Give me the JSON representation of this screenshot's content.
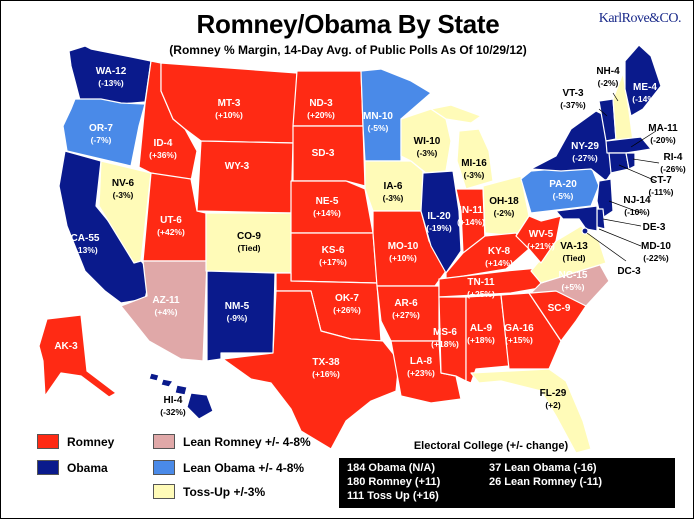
{
  "header": {
    "title": "Romney/Obama By State",
    "subtitle": "(Romney % Margin, 14-Day Avg. of Public Polls As Of 10/29/12)",
    "brand": "KarlRove&CO."
  },
  "colors": {
    "romney": "#ff2a14",
    "obama": "#0a1a8c",
    "lean_romney": "#e0a8a8",
    "lean_obama": "#4a8ae8",
    "tossup": "#fffbb8",
    "border": "#ffffff"
  },
  "states": [
    {
      "label": "WA-12",
      "value": "(-13%)",
      "category": "obama"
    },
    {
      "label": "OR-7",
      "value": "(-7%)",
      "category": "lean_obama"
    },
    {
      "label": "CA-55",
      "value": "(-13%)",
      "category": "obama"
    },
    {
      "label": "NV-6",
      "value": "(-3%)",
      "category": "tossup"
    },
    {
      "label": "ID-4",
      "value": "(+36%)",
      "category": "romney"
    },
    {
      "label": "MT-3",
      "value": "(+10%)",
      "category": "romney"
    },
    {
      "label": "WY-3",
      "value": "",
      "category": "romney"
    },
    {
      "label": "UT-6",
      "value": "(+42%)",
      "category": "romney"
    },
    {
      "label": "AZ-11",
      "value": "(+4%)",
      "category": "lean_romney"
    },
    {
      "label": "CO-9",
      "value": "(Tied)",
      "category": "tossup"
    },
    {
      "label": "NM-5",
      "value": "(-9%)",
      "category": "obama"
    },
    {
      "label": "ND-3",
      "value": "(+20%)",
      "category": "romney"
    },
    {
      "label": "SD-3",
      "value": "",
      "category": "romney"
    },
    {
      "label": "NE-5",
      "value": "(+14%)",
      "category": "romney"
    },
    {
      "label": "KS-6",
      "value": "(+17%)",
      "category": "romney"
    },
    {
      "label": "OK-7",
      "value": "(+26%)",
      "category": "romney"
    },
    {
      "label": "TX-38",
      "value": "(+16%)",
      "category": "romney"
    },
    {
      "label": "MN-10",
      "value": "(-5%)",
      "category": "lean_obama"
    },
    {
      "label": "IA-6",
      "value": "(-3%)",
      "category": "tossup"
    },
    {
      "label": "MO-10",
      "value": "(+10%)",
      "category": "romney"
    },
    {
      "label": "AR-6",
      "value": "(+27%)",
      "category": "romney"
    },
    {
      "label": "LA-8",
      "value": "(+23%)",
      "category": "romney"
    },
    {
      "label": "WI-10",
      "value": "(-3%)",
      "category": "tossup"
    },
    {
      "label": "IL-20",
      "value": "(-19%)",
      "category": "obama"
    },
    {
      "label": "MI-16",
      "value": "(-3%)",
      "category": "tossup"
    },
    {
      "label": "IN-11",
      "value": "(+14%)",
      "category": "romney"
    },
    {
      "label": "OH-18",
      "value": "(-2%)",
      "category": "tossup"
    },
    {
      "label": "KY-8",
      "value": "(+14%)",
      "category": "romney"
    },
    {
      "label": "TN-11",
      "value": "(+25%)",
      "category": "romney"
    },
    {
      "label": "MS-6",
      "value": "(+18%)",
      "category": "romney"
    },
    {
      "label": "AL-9",
      "value": "(+18%)",
      "category": "romney"
    },
    {
      "label": "GA-16",
      "value": "(+15%)",
      "category": "romney"
    },
    {
      "label": "FL-29",
      "value": "(+2)",
      "category": "tossup"
    },
    {
      "label": "SC-9",
      "value": "",
      "category": "romney"
    },
    {
      "label": "NC-15",
      "value": "(+5%)",
      "category": "lean_romney"
    },
    {
      "label": "VA-13",
      "value": "(Tied)",
      "category": "tossup"
    },
    {
      "label": "WV-5",
      "value": "(+21%)",
      "category": "romney"
    },
    {
      "label": "PA-20",
      "value": "(-5%)",
      "category": "lean_obama"
    },
    {
      "label": "NY-29",
      "value": "(-27%)",
      "category": "obama"
    },
    {
      "label": "VT-3",
      "value": "(-37%)",
      "category": "obama"
    },
    {
      "label": "NH-4",
      "value": "(-2%)",
      "category": "tossup"
    },
    {
      "label": "ME-4",
      "value": "(-14%)",
      "category": "obama"
    },
    {
      "label": "MA-11",
      "value": "(-20%)",
      "category": "obama"
    },
    {
      "label": "RI-4",
      "value": "(-26%)",
      "category": "obama"
    },
    {
      "label": "CT-7",
      "value": "(-11%)",
      "category": "obama"
    },
    {
      "label": "NJ-14",
      "value": "(-10%)",
      "category": "obama"
    },
    {
      "label": "DE-3",
      "value": "",
      "category": "obama"
    },
    {
      "label": "MD-10",
      "value": "(-22%)",
      "category": "obama"
    },
    {
      "label": "DC-3",
      "value": "",
      "category": "obama"
    },
    {
      "label": "AK-3",
      "value": "",
      "category": "romney"
    },
    {
      "label": "HI-4",
      "value": "(-32%)",
      "category": "obama"
    }
  ],
  "legend": [
    {
      "label": "Romney",
      "category": "romney"
    },
    {
      "label": "Obama",
      "category": "obama"
    },
    {
      "label": "Lean Romney +/- 4-8%",
      "category": "lean_romney"
    },
    {
      "label": "Lean Obama +/- 4-8%",
      "category": "lean_obama"
    },
    {
      "label": "Toss-Up +/-3%",
      "category": "tossup"
    }
  ],
  "electoral_college": {
    "title": "Electoral College (+/- change)",
    "lines": [
      "184 Obama (N/A)",
      "180 Romney (+11)",
      "111 Toss Up (+16)",
      "37 Lean Obama (-16)",
      "26 Lean Romney (-11)"
    ]
  }
}
